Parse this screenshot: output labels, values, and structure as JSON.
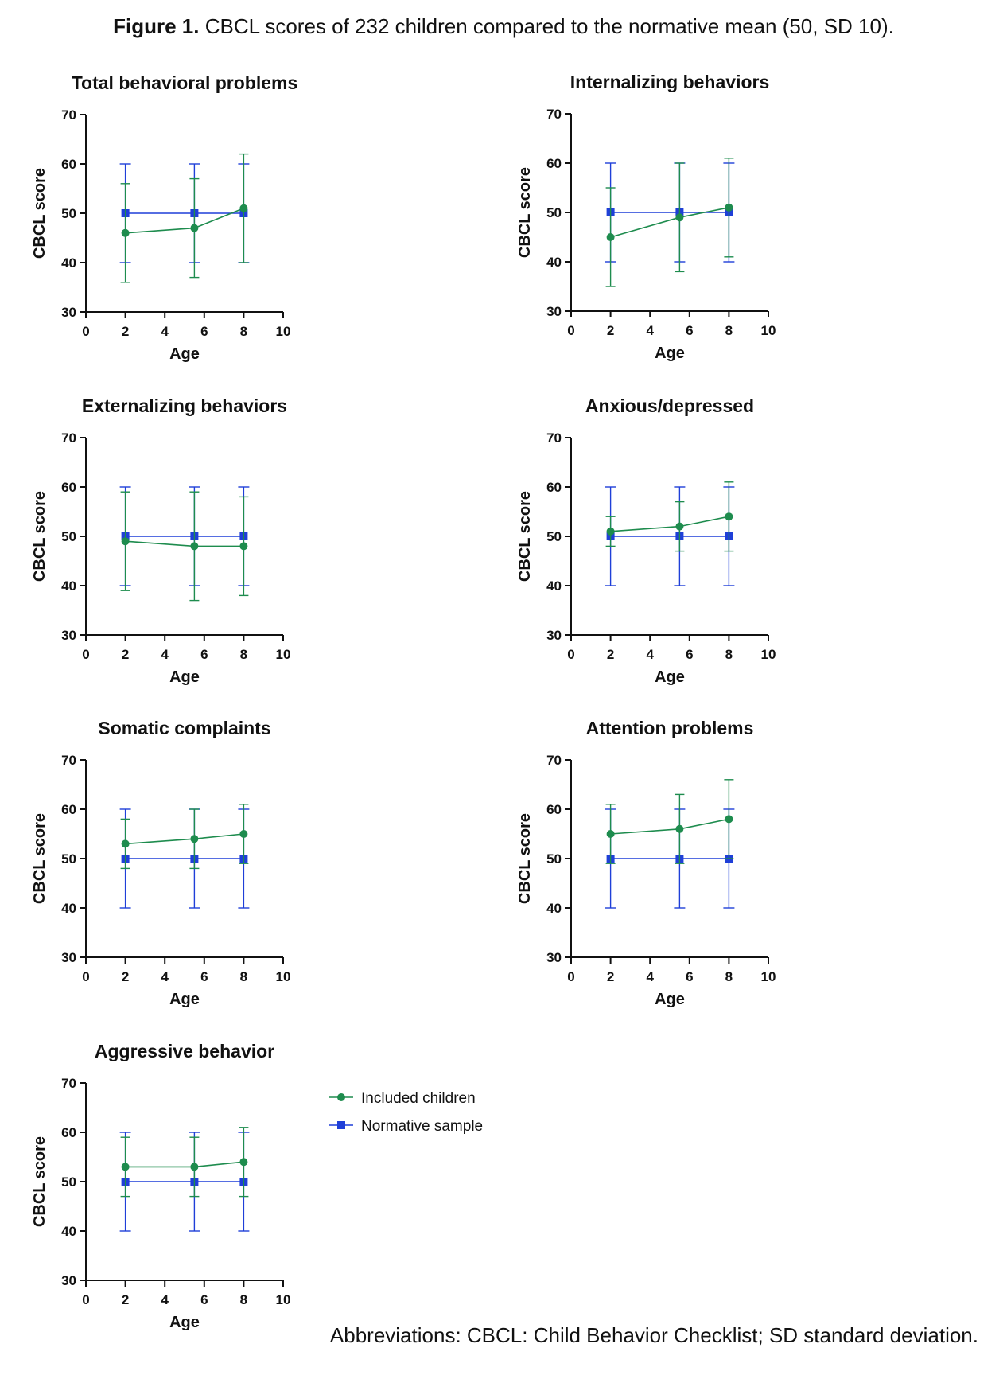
{
  "caption": {
    "label": "Figure 1.",
    "text": "CBCL scores of 232 children compared to the normative mean (50, SD 10)."
  },
  "footnote": "Abbreviations: CBCL: Child Behavior Checklist; SD standard deviation.",
  "colors": {
    "included": "#1e8c4e",
    "normative": "#1f3fd8",
    "axis": "#111111"
  },
  "legend": {
    "placement": "right of bottom-left panel",
    "items": [
      {
        "label": "Included children",
        "marker": "circle",
        "color": "#1e8c4e"
      },
      {
        "label": "Normative sample",
        "marker": "square",
        "color": "#1f3fd8"
      }
    ]
  },
  "chart_data": [
    {
      "type": "line",
      "title": "Total behavioral problems",
      "xlabel": "Age",
      "ylabel": "CBCL score",
      "xlim": [
        0,
        10
      ],
      "ylim": [
        30,
        70
      ],
      "xticks": [
        0,
        2,
        4,
        6,
        8,
        10
      ],
      "yticks": [
        30,
        40,
        50,
        60,
        70
      ],
      "x": [
        2,
        5.5,
        8
      ],
      "series": [
        {
          "name": "Included children",
          "values": [
            46,
            47,
            51
          ],
          "err_low": [
            36,
            37,
            40
          ],
          "err_high": [
            56,
            57,
            62
          ]
        },
        {
          "name": "Normative sample",
          "values": [
            50,
            50,
            50
          ],
          "err_low": [
            40,
            40,
            40
          ],
          "err_high": [
            60,
            60,
            60
          ]
        }
      ]
    },
    {
      "type": "line",
      "title": "Internalizing behaviors",
      "xlabel": "Age",
      "ylabel": "CBCL score",
      "xlim": [
        0,
        10
      ],
      "ylim": [
        30,
        70
      ],
      "xticks": [
        0,
        2,
        4,
        6,
        8,
        10
      ],
      "yticks": [
        30,
        40,
        50,
        60,
        70
      ],
      "x": [
        2,
        5.5,
        8
      ],
      "series": [
        {
          "name": "Included children",
          "values": [
            45,
            49,
            51
          ],
          "err_low": [
            35,
            38,
            41
          ],
          "err_high": [
            55,
            60,
            61
          ]
        },
        {
          "name": "Normative sample",
          "values": [
            50,
            50,
            50
          ],
          "err_low": [
            40,
            40,
            40
          ],
          "err_high": [
            60,
            60,
            60
          ]
        }
      ]
    },
    {
      "type": "line",
      "title": "Externalizing behaviors",
      "xlabel": "Age",
      "ylabel": "CBCL score",
      "xlim": [
        0,
        10
      ],
      "ylim": [
        30,
        70
      ],
      "xticks": [
        0,
        2,
        4,
        6,
        8,
        10
      ],
      "yticks": [
        30,
        40,
        50,
        60,
        70
      ],
      "x": [
        2,
        5.5,
        8
      ],
      "series": [
        {
          "name": "Included children",
          "values": [
            49,
            48,
            48
          ],
          "err_low": [
            39,
            37,
            38
          ],
          "err_high": [
            59,
            59,
            58
          ]
        },
        {
          "name": "Normative sample",
          "values": [
            50,
            50,
            50
          ],
          "err_low": [
            40,
            40,
            40
          ],
          "err_high": [
            60,
            60,
            60
          ]
        }
      ]
    },
    {
      "type": "line",
      "title": "Anxious/depressed",
      "xlabel": "Age",
      "ylabel": "CBCL score",
      "xlim": [
        0,
        10
      ],
      "ylim": [
        30,
        70
      ],
      "xticks": [
        0,
        2,
        4,
        6,
        8,
        10
      ],
      "yticks": [
        30,
        40,
        50,
        60,
        70
      ],
      "x": [
        2,
        5.5,
        8
      ],
      "series": [
        {
          "name": "Included children",
          "values": [
            51,
            52,
            54
          ],
          "err_low": [
            48,
            47,
            47
          ],
          "err_high": [
            54,
            57,
            61
          ]
        },
        {
          "name": "Normative sample",
          "values": [
            50,
            50,
            50
          ],
          "err_low": [
            40,
            40,
            40
          ],
          "err_high": [
            60,
            60,
            60
          ]
        }
      ]
    },
    {
      "type": "line",
      "title": "Somatic complaints",
      "xlabel": "Age",
      "ylabel": "CBCL score",
      "xlim": [
        0,
        10
      ],
      "ylim": [
        30,
        70
      ],
      "xticks": [
        0,
        2,
        4,
        6,
        8,
        10
      ],
      "yticks": [
        30,
        40,
        50,
        60,
        70
      ],
      "x": [
        2,
        5.5,
        8
      ],
      "series": [
        {
          "name": "Included children",
          "values": [
            53,
            54,
            55
          ],
          "err_low": [
            48,
            48,
            49
          ],
          "err_high": [
            58,
            60,
            61
          ]
        },
        {
          "name": "Normative sample",
          "values": [
            50,
            50,
            50
          ],
          "err_low": [
            40,
            40,
            40
          ],
          "err_high": [
            60,
            60,
            60
          ]
        }
      ]
    },
    {
      "type": "line",
      "title": "Attention problems",
      "xlabel": "Age",
      "ylabel": "CBCL score",
      "xlim": [
        0,
        10
      ],
      "ylim": [
        30,
        70
      ],
      "xticks": [
        0,
        2,
        4,
        6,
        8,
        10
      ],
      "yticks": [
        30,
        40,
        50,
        60,
        70
      ],
      "x": [
        2,
        5.5,
        8
      ],
      "series": [
        {
          "name": "Included children",
          "values": [
            55,
            56,
            58
          ],
          "err_low": [
            49,
            49,
            50
          ],
          "err_high": [
            61,
            63,
            66
          ]
        },
        {
          "name": "Normative sample",
          "values": [
            50,
            50,
            50
          ],
          "err_low": [
            40,
            40,
            40
          ],
          "err_high": [
            60,
            60,
            60
          ]
        }
      ]
    },
    {
      "type": "line",
      "title": "Aggressive behavior",
      "xlabel": "Age",
      "ylabel": "CBCL score",
      "xlim": [
        0,
        10
      ],
      "ylim": [
        30,
        70
      ],
      "xticks": [
        0,
        2,
        4,
        6,
        8,
        10
      ],
      "yticks": [
        30,
        40,
        50,
        60,
        70
      ],
      "x": [
        2,
        5.5,
        8
      ],
      "series": [
        {
          "name": "Included children",
          "values": [
            53,
            53,
            54
          ],
          "err_low": [
            47,
            47,
            47
          ],
          "err_high": [
            59,
            59,
            61
          ]
        },
        {
          "name": "Normative sample",
          "values": [
            50,
            50,
            50
          ],
          "err_low": [
            40,
            40,
            40
          ],
          "err_high": [
            60,
            60,
            60
          ]
        }
      ]
    }
  ]
}
